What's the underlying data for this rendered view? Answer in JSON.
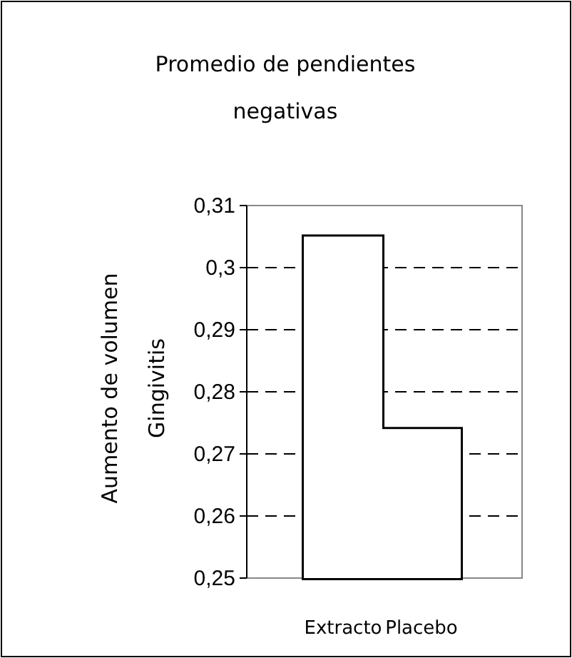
{
  "chart_data": {
    "type": "bar",
    "title": "Promedio de pendientes negativas",
    "ylabel": "Aumento de volumen Gingivitis",
    "categories": [
      "Extracto",
      "Placebo"
    ],
    "values": [
      0.305,
      0.274
    ],
    "colors": [
      "#ffffff",
      "#ffffff"
    ],
    "ylim": [
      0.25,
      0.31
    ],
    "yticks": [
      {
        "value": 0.25,
        "label": "0,25"
      },
      {
        "value": 0.26,
        "label": "0,26"
      },
      {
        "value": 0.27,
        "label": "0,27"
      },
      {
        "value": 0.28,
        "label": "0,28"
      },
      {
        "value": 0.29,
        "label": "0,29"
      },
      {
        "value": 0.3,
        "label": "0,3"
      },
      {
        "value": 0.31,
        "label": "0,31"
      }
    ],
    "grid": "y"
  }
}
